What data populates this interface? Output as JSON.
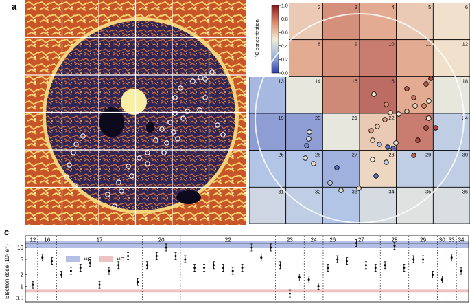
{
  "labels": {
    "a": "a",
    "b": "b",
    "c": "c"
  },
  "colors": {
    "map_dark": "#2a2350",
    "map_bright": "#f3cf63",
    "map_orange": "#d7652a",
    "grid_line": "#ffffff",
    "hole": "#f7efa3",
    "c13_band": "#b4bfe6",
    "c12_band": "#ecc3c3"
  },
  "panel_b": {
    "colorbar": {
      "title": "¹²C concentration",
      "ticks": [
        "1.0",
        "0.8",
        "0.6",
        "0.4",
        "0.2",
        "0.0"
      ],
      "tick_values": [
        1.0,
        0.8,
        0.6,
        0.4,
        0.2,
        0.0
      ]
    },
    "grid": {
      "rows": 6,
      "cols": 6,
      "labels": [
        "",
        "2",
        "3",
        "4",
        "5",
        "6",
        "",
        "8",
        "9",
        "10",
        "11",
        "12",
        "13",
        "14",
        "15",
        "16",
        "17",
        "18",
        "19",
        "20",
        "21",
        "22",
        "23",
        "24",
        "25",
        "26",
        "27",
        "28",
        "29",
        "30",
        "31",
        "32",
        "33",
        "34",
        "35",
        "36"
      ],
      "concentrations": [
        0.6,
        0.62,
        0.8,
        0.72,
        0.62,
        0.55,
        0.62,
        0.72,
        0.8,
        0.85,
        0.72,
        0.55,
        0.22,
        0.45,
        0.82,
        0.9,
        0.72,
        0.45,
        0.15,
        0.15,
        0.45,
        0.62,
        0.85,
        0.3,
        0.25,
        0.25,
        0.2,
        0.58,
        0.3,
        0.3,
        0.35,
        0.3,
        0.25,
        0.38,
        0.42,
        0.4
      ]
    }
  },
  "panel_c": {
    "ylabel": "Electron dose (10⁹ e⁻)",
    "yticks": [
      "10",
      "5",
      "2",
      "1",
      "0.5"
    ],
    "ytick_values": [
      10,
      5,
      2,
      1,
      0.5
    ],
    "legend": {
      "c13": "¹³C",
      "c12": "¹²C"
    },
    "groups": [
      {
        "label": "12",
        "values": [
          1.1
        ]
      },
      {
        "label": "16",
        "values": [
          5.5,
          4.5
        ]
      },
      {
        "label": "17",
        "values": [
          2.0,
          2.5,
          3.0,
          4.0,
          1.1,
          2.5,
          3.5,
          6.0,
          1.3
        ]
      },
      {
        "label": "20",
        "values": [
          3.5,
          6.0,
          10.0,
          6.0
        ]
      },
      {
        "label": "22",
        "values": [
          5.0,
          3.0,
          3.0,
          3.5,
          3.0,
          2.5,
          3.0,
          10.0,
          5.5,
          10.0
        ]
      },
      {
        "label": "23",
        "values": [
          3.5,
          0.65,
          1.7
        ]
      },
      {
        "label": "24",
        "values": [
          1.5,
          1.0
        ]
      },
      {
        "label": "26",
        "values": [
          3.0,
          5.0
        ]
      },
      {
        "label": "27",
        "values": [
          4.5,
          13.0,
          3.5,
          3.0
        ]
      },
      {
        "label": "28",
        "values": [
          3.5,
          11.0,
          3.0
        ]
      },
      {
        "label": "29",
        "values": [
          5.0,
          5.0,
          2.0
        ]
      },
      {
        "label": "30",
        "values": [
          1.5
        ]
      },
      {
        "label": "33",
        "values": [
          5.5
        ]
      },
      {
        "label": "34",
        "values": [
          2.5
        ]
      }
    ]
  }
}
